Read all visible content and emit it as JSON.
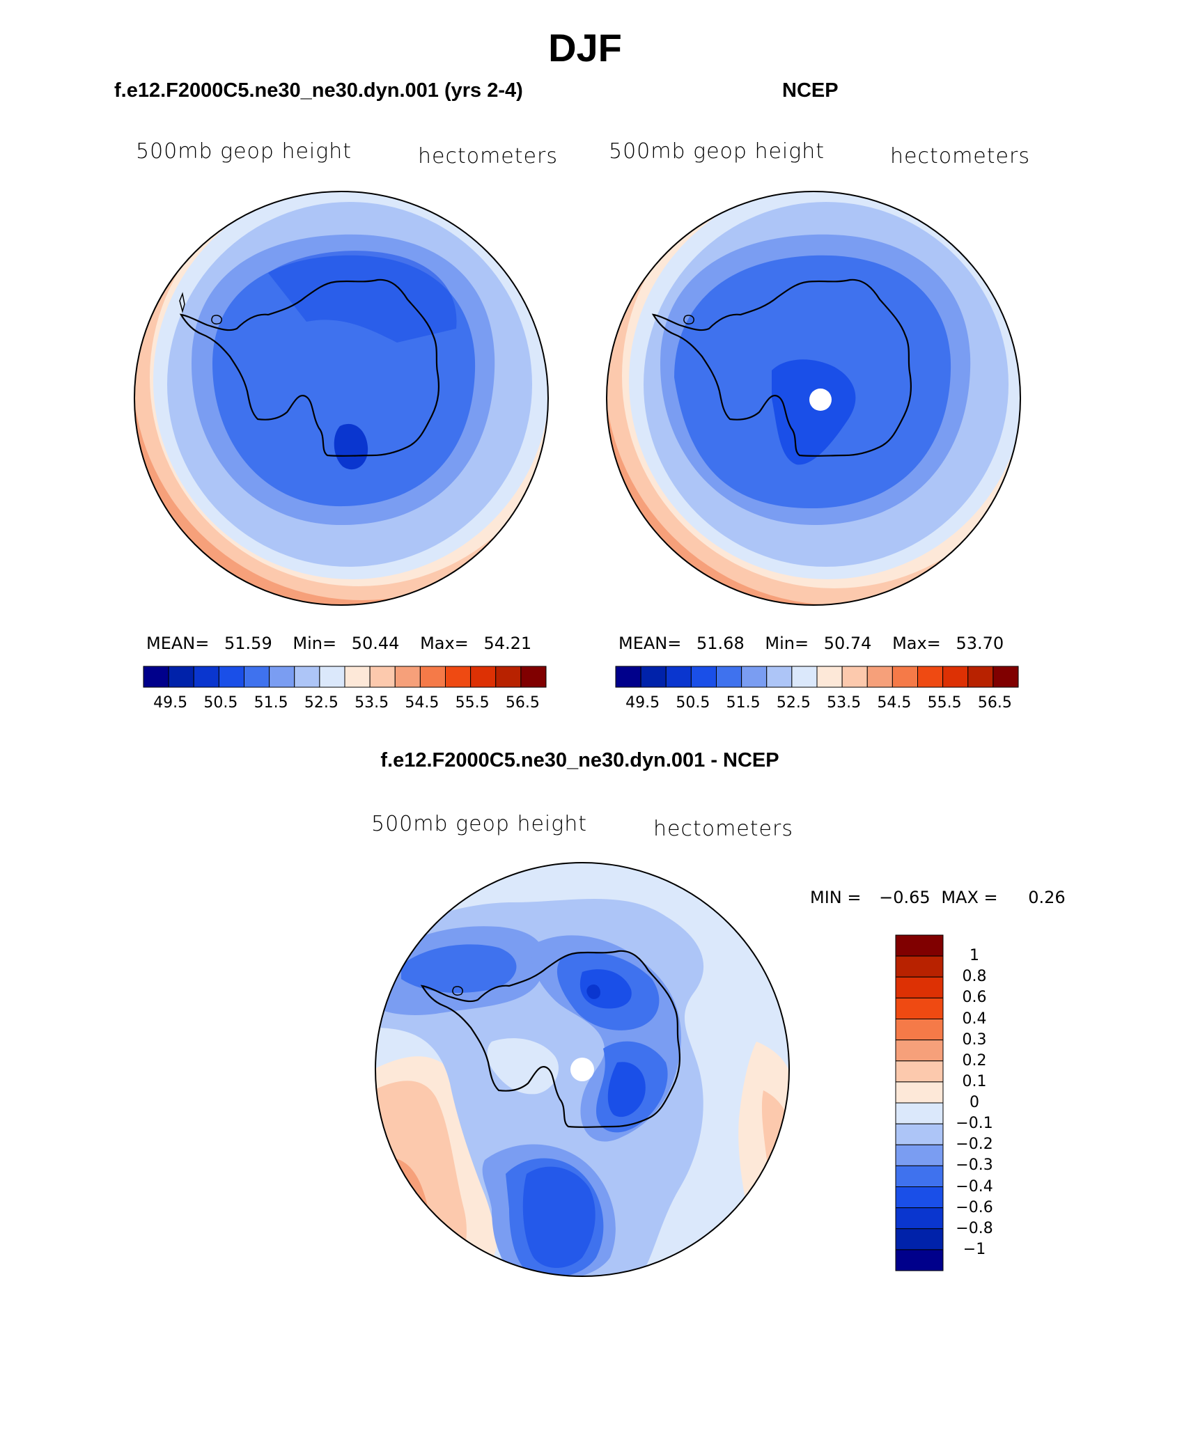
{
  "figure": {
    "title": "DJF"
  },
  "panels": {
    "model": {
      "title": "f.e12.F2000C5.ne30_ne30.dyn.001 (yrs 2-4)",
      "variable": "500mb geop height",
      "units": "hectometers",
      "mean_label": "MEAN=",
      "mean": "51.59",
      "min_label": "Min=",
      "min": "50.44",
      "max_label": "Max=",
      "max": "54.21"
    },
    "obs": {
      "title": "NCEP",
      "variable": "500mb geop height",
      "units": "hectometers",
      "mean_label": "MEAN=",
      "mean": "51.68",
      "min_label": "Min=",
      "min": "50.74",
      "max_label": "Max=",
      "max": "53.70"
    },
    "diff": {
      "title": "f.e12.F2000C5.ne30_ne30.dyn.001 - NCEP",
      "variable": "500mb geop height",
      "units": "hectometers",
      "min_label": "MIN =",
      "min": "−0.65",
      "max_label": "MAX =",
      "max": "0.26"
    }
  },
  "colorbars": {
    "abs": {
      "colors": [
        "#00008b",
        "#0022aa",
        "#0a36cf",
        "#1a4fe8",
        "#3f72ee",
        "#7a9df2",
        "#adc5f7",
        "#dbe8fb",
        "#fde8d8",
        "#fcc9ad",
        "#f6a07a",
        "#f57a48",
        "#ef4a12",
        "#dd3104",
        "#b82200",
        "#800000"
      ],
      "tick_labels": [
        "49.5",
        "50.5",
        "51.5",
        "52.5",
        "53.5",
        "54.5",
        "55.5",
        "56.5"
      ]
    },
    "diff": {
      "colors": [
        "#800000",
        "#b82200",
        "#dd3104",
        "#ef4a12",
        "#f57a48",
        "#f6a07a",
        "#fcc9ad",
        "#fde8d8",
        "#dbe8fb",
        "#adc5f7",
        "#7a9df2",
        "#3f72ee",
        "#1a4fe8",
        "#0a36cf",
        "#0022aa",
        "#00008b"
      ],
      "tick_labels": [
        "1",
        "0.8",
        "0.6",
        "0.4",
        "0.3",
        "0.2",
        "0.1",
        "0",
        "−0.1",
        "−0.2",
        "−0.3",
        "−0.4",
        "−0.6",
        "−0.8",
        "−1"
      ]
    }
  }
}
